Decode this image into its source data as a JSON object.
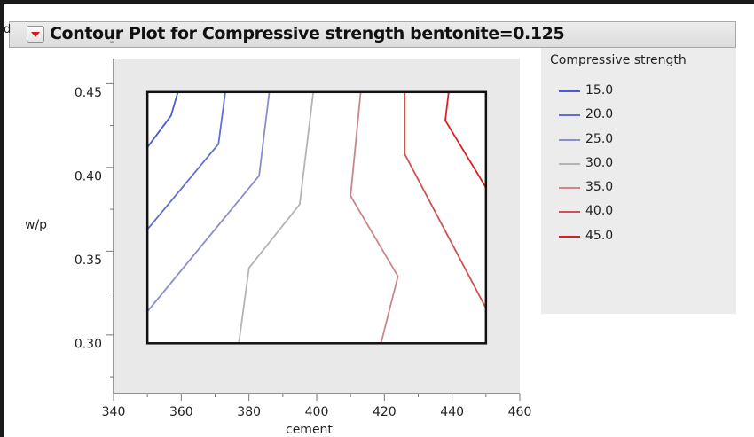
{
  "title": "Contour Plot for Compressive strength bentonite=0.125",
  "chart_data": {
    "type": "contour",
    "xlabel": "cement",
    "ylabel": "w/p",
    "xlim": [
      340,
      460
    ],
    "ylim": [
      0.27,
      0.47
    ],
    "xticks": [
      "340",
      "360",
      "380",
      "400",
      "420",
      "440",
      "460"
    ],
    "yticks": [
      "0.30",
      "0.35",
      "0.40",
      "0.45"
    ],
    "grid": false,
    "data_region": {
      "x": [
        350,
        450
      ],
      "y": [
        0.3,
        0.45
      ]
    },
    "legend": {
      "title": "Compressive strength",
      "position": "right"
    },
    "series": [
      {
        "name": "15.0",
        "color": "#4a5bd6",
        "points": [
          [
            350,
            0.417
          ],
          [
            357,
            0.436
          ],
          [
            359,
            0.45
          ]
        ]
      },
      {
        "name": "20.0",
        "color": "#6070d0",
        "points": [
          [
            350,
            0.368
          ],
          [
            371,
            0.419
          ],
          [
            373,
            0.45
          ]
        ]
      },
      {
        "name": "25.0",
        "color": "#8a8ec8",
        "points": [
          [
            350,
            0.319
          ],
          [
            383,
            0.4
          ],
          [
            386,
            0.45
          ]
        ]
      },
      {
        "name": "30.0",
        "color": "#b4b4b8",
        "points": [
          [
            377,
            0.3
          ],
          [
            380,
            0.345
          ],
          [
            395,
            0.383
          ],
          [
            399,
            0.45
          ]
        ]
      },
      {
        "name": "35.0",
        "color": "#c88888",
        "points": [
          [
            419,
            0.3
          ],
          [
            424,
            0.34
          ],
          [
            410,
            0.388
          ],
          [
            413,
            0.45
          ]
        ]
      },
      {
        "name": "40.0",
        "color": "#cc5454",
        "points": [
          [
            450,
            0.321
          ],
          [
            426,
            0.413
          ],
          [
            426,
            0.45
          ]
        ]
      },
      {
        "name": "45.0",
        "color": "#d82222",
        "points": [
          [
            450,
            0.393
          ],
          [
            438,
            0.433
          ],
          [
            439,
            0.45
          ]
        ]
      }
    ]
  }
}
